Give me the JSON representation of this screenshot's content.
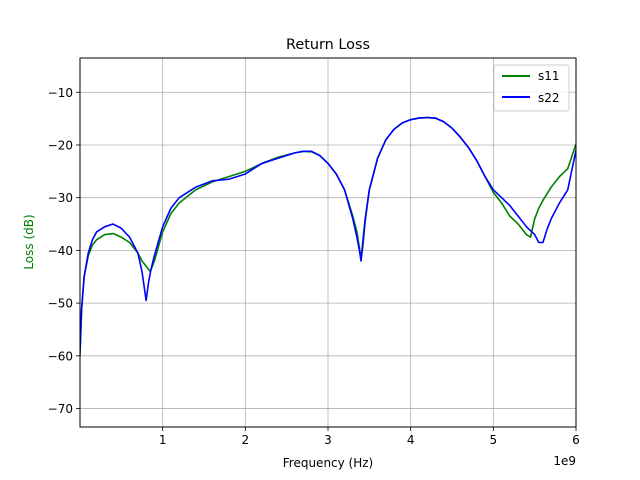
{
  "chart_data": {
    "type": "line",
    "title": "Return Loss",
    "xlabel": "Frequency (Hz)",
    "ylabel": "Loss (dB)",
    "ylabel_color": "#008000",
    "x_offset_label": "1e9",
    "xlim": [
      0,
      6
    ],
    "ylim": [
      -73.5,
      -3.5
    ],
    "x_ticks": [
      1,
      2,
      3,
      4,
      5,
      6
    ],
    "x_tick_labels": [
      "1",
      "2",
      "3",
      "4",
      "5",
      "6"
    ],
    "y_ticks": [
      -10,
      -20,
      -30,
      -40,
      -50,
      -60,
      -70
    ],
    "y_tick_labels": [
      "−10",
      "−20",
      "−30",
      "−40",
      "−50",
      "−60",
      "−70"
    ],
    "grid": true,
    "legend_position": "top-right",
    "series": [
      {
        "name": "s11",
        "color": "#008000",
        "x": [
          0,
          0.02,
          0.05,
          0.1,
          0.15,
          0.2,
          0.3,
          0.4,
          0.5,
          0.6,
          0.7,
          0.75,
          0.8,
          0.85,
          0.9,
          1.0,
          1.1,
          1.2,
          1.4,
          1.6,
          1.8,
          2.0,
          2.2,
          2.4,
          2.6,
          2.7,
          2.8,
          2.9,
          3.0,
          3.1,
          3.2,
          3.3,
          3.35,
          3.38,
          3.4,
          3.42,
          3.45,
          3.5,
          3.6,
          3.7,
          3.8,
          3.9,
          4.0,
          4.1,
          4.2,
          4.3,
          4.4,
          4.5,
          4.6,
          4.7,
          4.8,
          4.9,
          5.0,
          5.1,
          5.2,
          5.3,
          5.4,
          5.45,
          5.5,
          5.55,
          5.6,
          5.7,
          5.8,
          5.9,
          6.0
        ],
        "y": [
          -60,
          -51,
          -45,
          -41,
          -39,
          -38,
          -37,
          -36.8,
          -37.5,
          -38.5,
          -40.5,
          -42,
          -43,
          -44,
          -42,
          -36.5,
          -33,
          -31,
          -28.5,
          -27,
          -26,
          -25,
          -23.5,
          -22.3,
          -21.5,
          -21.2,
          -21.3,
          -22,
          -23.5,
          -25.5,
          -28.5,
          -33.5,
          -36.5,
          -39.5,
          -41.5,
          -39.5,
          -34.5,
          -28.5,
          -22.5,
          -19,
          -17,
          -15.8,
          -15.2,
          -14.9,
          -14.8,
          -14.9,
          -15.6,
          -16.8,
          -18.5,
          -20.5,
          -23,
          -26,
          -29,
          -31,
          -33.5,
          -35,
          -37,
          -37.5,
          -34,
          -32,
          -30.5,
          -28,
          -26,
          -24.5,
          -19.8
        ]
      },
      {
        "name": "s22",
        "color": "#0000ff",
        "x": [
          0,
          0.02,
          0.05,
          0.1,
          0.15,
          0.2,
          0.3,
          0.4,
          0.5,
          0.6,
          0.7,
          0.75,
          0.8,
          0.83,
          0.86,
          0.9,
          1.0,
          1.1,
          1.2,
          1.4,
          1.6,
          1.8,
          2.0,
          2.2,
          2.4,
          2.6,
          2.7,
          2.8,
          2.9,
          3.0,
          3.1,
          3.2,
          3.3,
          3.35,
          3.38,
          3.4,
          3.42,
          3.45,
          3.5,
          3.6,
          3.7,
          3.8,
          3.9,
          4.0,
          4.1,
          4.2,
          4.3,
          4.4,
          4.5,
          4.6,
          4.7,
          4.8,
          4.9,
          5.0,
          5.1,
          5.2,
          5.3,
          5.4,
          5.5,
          5.55,
          5.6,
          5.65,
          5.7,
          5.8,
          5.9,
          6.0
        ],
        "y": [
          -59,
          -51,
          -45,
          -40.5,
          -38,
          -36.5,
          -35.5,
          -35,
          -35.8,
          -37.5,
          -40.5,
          -44,
          -49.5,
          -46,
          -43.5,
          -41,
          -35.5,
          -32,
          -30,
          -28,
          -26.8,
          -26.5,
          -25.5,
          -23.5,
          -22.5,
          -21.5,
          -21.2,
          -21.2,
          -22,
          -23.5,
          -25.5,
          -28.5,
          -34,
          -37.5,
          -40,
          -42,
          -38.5,
          -34,
          -28.5,
          -22.5,
          -19,
          -17,
          -15.8,
          -15.2,
          -14.9,
          -14.8,
          -14.9,
          -15.6,
          -16.8,
          -18.5,
          -20.5,
          -23,
          -26,
          -28.5,
          -30,
          -31.5,
          -33.5,
          -35.5,
          -37,
          -38.5,
          -38.5,
          -36,
          -34,
          -31,
          -28.5,
          -21
        ]
      }
    ]
  }
}
